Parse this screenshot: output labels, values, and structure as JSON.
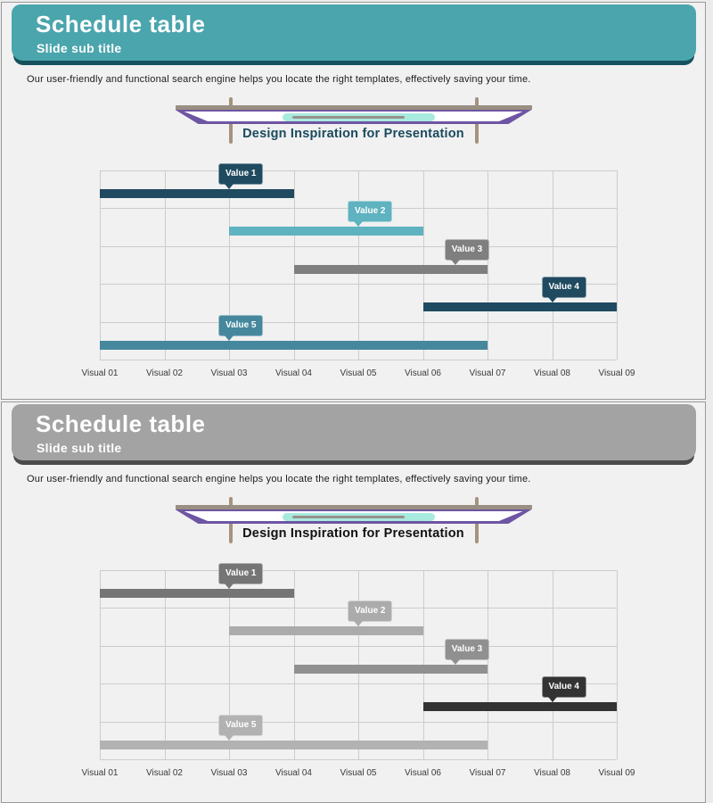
{
  "page": {
    "bg": "#ececec",
    "card_bg": "#f1f1f1",
    "card_border": "#9a9a9a",
    "grid_line": "#cccccc",
    "axis_text_color": "#3a3a3a"
  },
  "banner_theme": {
    "topbar": "#9a8f82",
    "frame": "#6e55a3",
    "face": "#ffffff",
    "accent": "#a9eadf",
    "reflection": "#98918b",
    "peg": "#a6937e"
  },
  "slides": [
    {
      "header": {
        "title": "Schedule table",
        "subtitle": "Slide sub title",
        "bg": "#4ba5ad",
        "shadow": "#16525e"
      },
      "body_text": "Our user-friendly and functional search engine helps you locate the right templates, effectively saving your time.",
      "banner_caption": "Design Inspiration for Presentation",
      "caption_color": "#1a4a5e",
      "chart_index": 0
    },
    {
      "header": {
        "title": "Schedule table",
        "subtitle": "Slide sub title",
        "bg": "#a3a3a3",
        "shadow": "#4b4b4b"
      },
      "body_text": "Our user-friendly and functional search engine helps you locate the right templates, effectively saving your time.",
      "banner_caption": "Design Inspiration for Presentation",
      "caption_color": "#111111",
      "chart_index": 1
    }
  ],
  "chart_data": [
    {
      "type": "gantt",
      "variant": "color",
      "categories": [
        "Visual 01",
        "Visual 02",
        "Visual 03",
        "Visual 04",
        "Visual 05",
        "Visual 06",
        "Visual 07",
        "Visual 08",
        "Visual 09"
      ],
      "x_range": [
        1,
        9
      ],
      "rows": 5,
      "grid": true,
      "series": [
        {
          "name": "Value 1",
          "start": 1,
          "end": 4,
          "row": 0,
          "color": "#1f4a60",
          "label_anchor": 3
        },
        {
          "name": "Value 2",
          "start": 3,
          "end": 6,
          "row": 1,
          "color": "#5fb2bf",
          "label_anchor": 5
        },
        {
          "name": "Value 3",
          "start": 4,
          "end": 7,
          "row": 2,
          "color": "#7f7f7f",
          "label_anchor": 6.5
        },
        {
          "name": "Value 4",
          "start": 6,
          "end": 9,
          "row": 3,
          "color": "#1f4a60",
          "label_anchor": 8
        },
        {
          "name": "Value 5",
          "start": 1,
          "end": 7,
          "row": 4,
          "color": "#45889d",
          "label_anchor": 3
        }
      ]
    },
    {
      "type": "gantt",
      "variant": "grayscale",
      "categories": [
        "Visual 01",
        "Visual 02",
        "Visual 03",
        "Visual 04",
        "Visual 05",
        "Visual 06",
        "Visual 07",
        "Visual 08",
        "Visual 09"
      ],
      "x_range": [
        1,
        9
      ],
      "rows": 5,
      "grid": true,
      "series": [
        {
          "name": "Value 1",
          "start": 1,
          "end": 4,
          "row": 0,
          "color": "#757575",
          "label_anchor": 3
        },
        {
          "name": "Value 2",
          "start": 3,
          "end": 6,
          "row": 1,
          "color": "#ababab",
          "label_anchor": 5
        },
        {
          "name": "Value 3",
          "start": 4,
          "end": 7,
          "row": 2,
          "color": "#909090",
          "label_anchor": 6.5
        },
        {
          "name": "Value 4",
          "start": 6,
          "end": 9,
          "row": 3,
          "color": "#333333",
          "label_anchor": 8
        },
        {
          "name": "Value 5",
          "start": 1,
          "end": 7,
          "row": 4,
          "color": "#b2b2b2",
          "label_anchor": 3
        }
      ]
    }
  ]
}
